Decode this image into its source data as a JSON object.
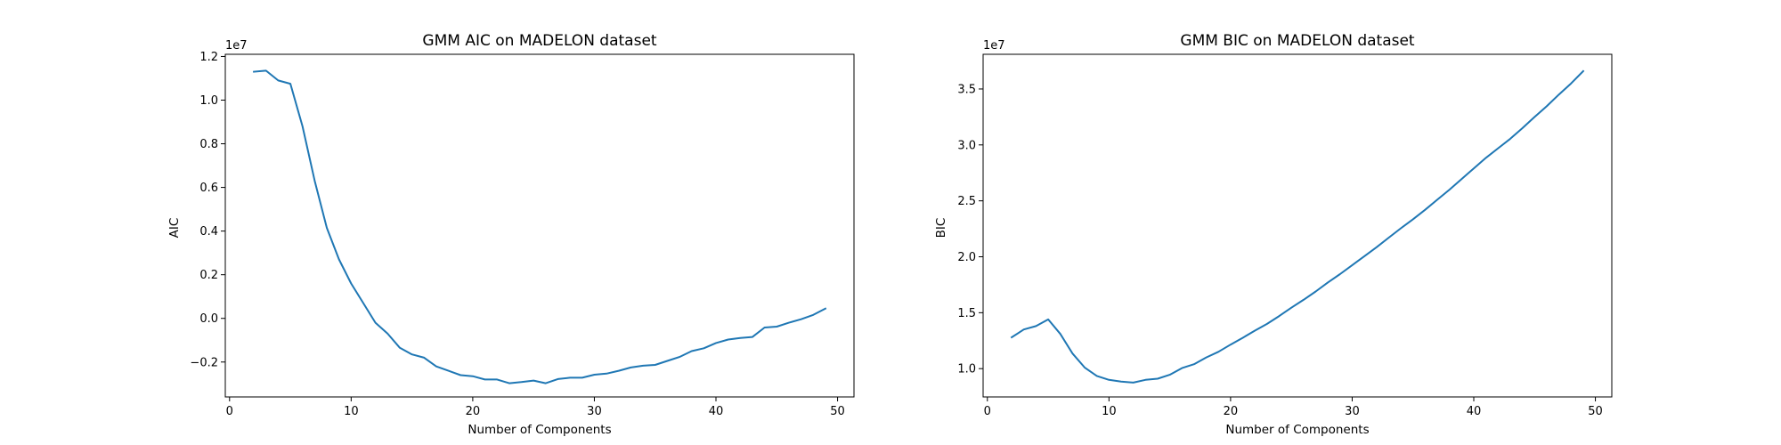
{
  "figure": {
    "background": "#ffffff",
    "line_color": "#1f77b4"
  },
  "chart_data": [
    {
      "id": "aic",
      "type": "line",
      "title": "GMM AIC on MADELON dataset",
      "xlabel": "Number of Components",
      "ylabel": "AIC",
      "offset_text": "1e7",
      "xlim": [
        -0.35,
        51.35
      ],
      "ylim": [
        -3.6,
        12.1
      ],
      "xticks": [
        0,
        10,
        20,
        30,
        40,
        50
      ],
      "xtick_labels": [
        "0",
        "10",
        "20",
        "30",
        "40",
        "50"
      ],
      "yticks": [
        -2,
        0,
        2,
        4,
        6,
        8,
        10,
        12
      ],
      "ytick_labels": [
        "−0.2",
        "0.0",
        "0.2",
        "0.4",
        "0.6",
        "0.8",
        "1.0",
        "1.2"
      ],
      "grid": false,
      "series": [
        {
          "x": [
            2,
            3,
            4,
            5,
            6,
            7,
            8,
            9,
            10,
            11,
            12,
            13,
            14,
            15,
            16,
            17,
            18,
            19,
            20,
            21,
            22,
            23,
            24,
            25,
            26,
            27,
            28,
            29,
            30,
            31,
            32,
            33,
            34,
            35,
            36,
            37,
            38,
            39,
            40,
            41,
            42,
            43,
            44,
            45,
            46,
            47,
            48,
            49
          ],
          "values": [
            11.3,
            11.35,
            10.9,
            10.75,
            8.8,
            6.3,
            4.15,
            2.7,
            1.6,
            0.7,
            -0.2,
            -0.7,
            -1.35,
            -1.65,
            -1.8,
            -2.2,
            -2.4,
            -2.6,
            -2.65,
            -2.8,
            -2.8,
            -2.97,
            -2.92,
            -2.85,
            -2.97,
            -2.78,
            -2.72,
            -2.72,
            -2.58,
            -2.53,
            -2.4,
            -2.25,
            -2.17,
            -2.13,
            -1.95,
            -1.77,
            -1.5,
            -1.37,
            -1.13,
            -0.97,
            -0.9,
            -0.85,
            -0.42,
            -0.38,
            -0.2,
            -0.04,
            0.16,
            0.45
          ]
        }
      ]
    },
    {
      "id": "bic",
      "type": "line",
      "title": "GMM BIC on MADELON dataset",
      "xlabel": "Number of Components",
      "ylabel": "BIC",
      "offset_text": "1e7",
      "xlim": [
        -0.35,
        51.35
      ],
      "ylim": [
        7.47,
        38.1
      ],
      "xticks": [
        0,
        10,
        20,
        30,
        40,
        50
      ],
      "xtick_labels": [
        "0",
        "10",
        "20",
        "30",
        "40",
        "50"
      ],
      "yticks": [
        10,
        15,
        20,
        25,
        30,
        35
      ],
      "ytick_labels": [
        "1.0",
        "1.5",
        "2.0",
        "2.5",
        "3.0",
        "3.5"
      ],
      "grid": false,
      "series": [
        {
          "x": [
            2,
            3,
            4,
            5,
            6,
            7,
            8,
            9,
            10,
            11,
            12,
            13,
            14,
            15,
            16,
            17,
            18,
            19,
            20,
            21,
            22,
            23,
            24,
            25,
            26,
            27,
            28,
            29,
            30,
            31,
            32,
            33,
            34,
            35,
            36,
            37,
            38,
            39,
            40,
            41,
            42,
            43,
            44,
            45,
            46,
            47,
            48,
            49
          ],
          "values": [
            12.8,
            13.5,
            13.8,
            14.4,
            13.1,
            11.35,
            10.1,
            9.35,
            9.0,
            8.85,
            8.75,
            9.0,
            9.1,
            9.45,
            10.05,
            10.4,
            11.0,
            11.5,
            12.15,
            12.75,
            13.4,
            14.0,
            14.7,
            15.45,
            16.15,
            16.9,
            17.7,
            18.45,
            19.25,
            20.05,
            20.85,
            21.7,
            22.55,
            23.35,
            24.2,
            25.1,
            26.0,
            26.95,
            27.9,
            28.85,
            29.7,
            30.55,
            31.5,
            32.5,
            33.45,
            34.5,
            35.5,
            36.6
          ]
        }
      ]
    }
  ]
}
